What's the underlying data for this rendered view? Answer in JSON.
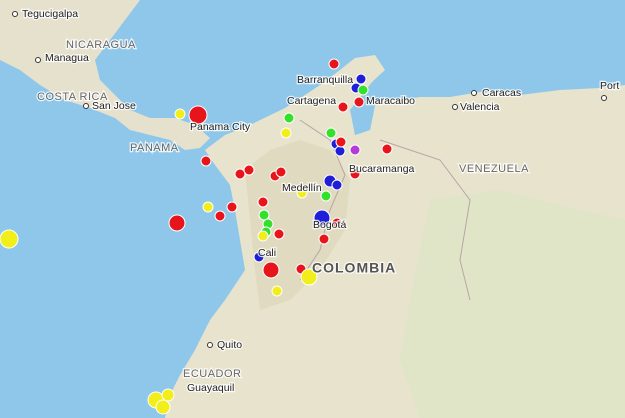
{
  "map": {
    "labels": [
      {
        "name": "Tegucigalpa",
        "kind": "city"
      },
      {
        "name": "NICARAGUA",
        "kind": "country"
      },
      {
        "name": "Managua",
        "kind": "city"
      },
      {
        "name": "COSTA RICA",
        "kind": "country"
      },
      {
        "name": "San Jose",
        "kind": "city"
      },
      {
        "name": "Panama City",
        "kind": "city"
      },
      {
        "name": "PANAMA",
        "kind": "country"
      },
      {
        "name": "Barranquilla",
        "kind": "city"
      },
      {
        "name": "Cartagena",
        "kind": "city"
      },
      {
        "name": "Maracaibo",
        "kind": "city"
      },
      {
        "name": "Caracas",
        "kind": "city"
      },
      {
        "name": "Valencia",
        "kind": "city"
      },
      {
        "name": "Port",
        "kind": "city"
      },
      {
        "name": "Bucaramanga",
        "kind": "city"
      },
      {
        "name": "VENEZUELA",
        "kind": "country"
      },
      {
        "name": "Medellín",
        "kind": "city"
      },
      {
        "name": "Bogotá",
        "kind": "city"
      },
      {
        "name": "Cali",
        "kind": "city"
      },
      {
        "name": "COLOMBIA",
        "kind": "big-country"
      },
      {
        "name": "Quito",
        "kind": "city"
      },
      {
        "name": "ECUADOR",
        "kind": "country"
      },
      {
        "name": "Guayaquil",
        "kind": "city"
      }
    ]
  }
}
